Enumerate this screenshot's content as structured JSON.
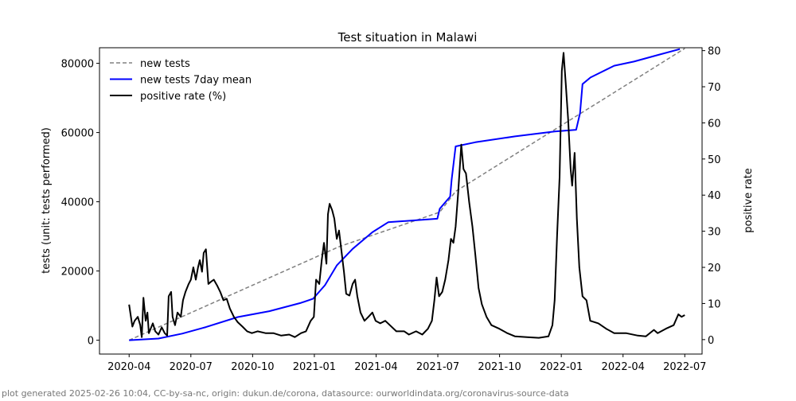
{
  "chart_data": {
    "type": "line",
    "title": "Test situation in Malawi",
    "xlabel": "",
    "ylabel": "tests (unit: tests performed)",
    "ylabel_right": "positive rate",
    "x_unit": "decimal year",
    "xlim": [
      2020.13,
      2022.57
    ],
    "ylim": [
      -4000,
      84500
    ],
    "ylim_right": [
      -4,
      80.8
    ],
    "x_ticks": [
      {
        "v": 2020.25,
        "label": "2020-04"
      },
      {
        "v": 2020.5,
        "label": "2020-07"
      },
      {
        "v": 2020.75,
        "label": "2020-10"
      },
      {
        "v": 2021.0,
        "label": "2021-01"
      },
      {
        "v": 2021.25,
        "label": "2021-04"
      },
      {
        "v": 2021.5,
        "label": "2021-07"
      },
      {
        "v": 2021.75,
        "label": "2021-10"
      },
      {
        "v": 2022.0,
        "label": "2022-01"
      },
      {
        "v": 2022.25,
        "label": "2022-04"
      },
      {
        "v": 2022.5,
        "label": "2022-07"
      }
    ],
    "y_ticks": [
      {
        "v": 0,
        "label": "0"
      },
      {
        "v": 20000,
        "label": "20000"
      },
      {
        "v": 40000,
        "label": "40000"
      },
      {
        "v": 60000,
        "label": "60000"
      },
      {
        "v": 80000,
        "label": "80000"
      }
    ],
    "y_ticks_right": [
      {
        "v": 0,
        "label": "0"
      },
      {
        "v": 10,
        "label": "10"
      },
      {
        "v": 20,
        "label": "20"
      },
      {
        "v": 30,
        "label": "30"
      },
      {
        "v": 40,
        "label": "40"
      },
      {
        "v": 50,
        "label": "50"
      },
      {
        "v": 60,
        "label": "60"
      },
      {
        "v": 70,
        "label": "70"
      },
      {
        "v": 80,
        "label": "80"
      }
    ],
    "legend_position": "top-left",
    "series": [
      {
        "name": "new tests",
        "axis": "left",
        "color": "#808080",
        "style": "dashed",
        "x": [
          2020.25,
          2021.1,
          2021.508,
          2021.572,
          2022.5
        ],
        "y": [
          0,
          27000,
          37000,
          43000,
          84300
        ]
      },
      {
        "name": "new tests 7day mean",
        "axis": "left",
        "color": "#0000ff",
        "style": "solid",
        "x": [
          2020.25,
          2020.369,
          2020.465,
          2020.561,
          2020.69,
          2020.818,
          2020.946,
          2020.995,
          2021.043,
          2021.091,
          2021.155,
          2021.235,
          2021.299,
          2021.498,
          2021.508,
          2021.55,
          2021.556,
          2021.572,
          2021.652,
          2021.813,
          2021.973,
          2022.06,
          2022.076,
          2022.086,
          2022.118,
          2022.214,
          2022.294,
          2022.391,
          2022.48
        ],
        "y": [
          0,
          480,
          1900,
          3800,
          6700,
          8400,
          10800,
          12000,
          15900,
          21600,
          26400,
          31200,
          34100,
          35100,
          38000,
          41500,
          46400,
          56000,
          57200,
          58900,
          60300,
          60800,
          65600,
          74000,
          75900,
          79300,
          80500,
          82400,
          84100
        ]
      },
      {
        "name": "positive rate (%)",
        "axis": "right",
        "color": "#000000",
        "style": "solid",
        "x": [
          2020.25,
          2020.263,
          2020.272,
          2020.285,
          2020.295,
          2020.301,
          2020.308,
          2020.317,
          2020.324,
          2020.33,
          2020.346,
          2020.356,
          2020.369,
          2020.382,
          2020.394,
          2020.404,
          2020.41,
          2020.42,
          2020.426,
          2020.436,
          2020.446,
          2020.459,
          2020.468,
          2020.478,
          2020.491,
          2020.5,
          2020.51,
          2020.52,
          2020.529,
          2020.536,
          2020.545,
          2020.552,
          2020.561,
          2020.571,
          2020.581,
          2020.593,
          2020.606,
          2020.619,
          2020.632,
          2020.645,
          2020.658,
          2020.674,
          2020.69,
          2020.709,
          2020.728,
          2020.747,
          2020.77,
          2020.802,
          2020.834,
          2020.866,
          2020.898,
          2020.921,
          2020.946,
          2020.966,
          2020.985,
          2020.998,
          2021.007,
          2021.02,
          2021.03,
          2021.039,
          2021.049,
          2021.055,
          2021.062,
          2021.072,
          2021.081,
          2021.091,
          2021.1,
          2021.11,
          2021.12,
          2021.129,
          2021.142,
          2021.155,
          2021.165,
          2021.174,
          2021.187,
          2021.203,
          2021.219,
          2021.235,
          2021.248,
          2021.267,
          2021.287,
          2021.306,
          2021.332,
          2021.364,
          2021.383,
          2021.412,
          2021.437,
          2021.46,
          2021.476,
          2021.486,
          2021.495,
          2021.505,
          2021.518,
          2021.53,
          2021.543,
          2021.553,
          2021.563,
          2021.572,
          2021.582,
          2021.595,
          2021.604,
          2021.614,
          2021.627,
          2021.64,
          2021.652,
          2021.665,
          2021.678,
          2021.697,
          2021.717,
          2021.749,
          2021.781,
          2021.813,
          2021.861,
          2021.909,
          2021.948,
          2021.964,
          2021.973,
          2021.983,
          2021.993,
          2022.002,
          2022.009,
          2022.018,
          2022.028,
          2022.038,
          2022.044,
          2022.054,
          2022.063,
          2022.073,
          2022.086,
          2022.102,
          2022.117,
          2022.15,
          2022.182,
          2022.214,
          2022.262,
          2022.31,
          2022.342,
          2022.375,
          2022.39,
          2022.423,
          2022.455,
          2022.474,
          2022.487,
          2022.5
        ],
        "y": [
          9.7,
          3.6,
          5.2,
          6.3,
          4,
          0.7,
          11.6,
          5.2,
          7.5,
          1.8,
          4.5,
          2.3,
          1.4,
          3.4,
          1.8,
          1.1,
          12,
          13.2,
          6.3,
          4,
          7.5,
          6.3,
          10.9,
          13.2,
          15.4,
          16.6,
          20,
          16.6,
          20,
          22,
          18.8,
          24,
          25,
          15.4,
          16,
          16.6,
          15,
          13.2,
          10.9,
          11.3,
          8.6,
          6.3,
          4.8,
          3.6,
          2.3,
          1.8,
          2.3,
          1.8,
          1.8,
          1.1,
          1.4,
          0.7,
          1.8,
          2.3,
          5.2,
          6.3,
          16.6,
          15.4,
          22,
          26.8,
          21,
          34.7,
          37.6,
          35.8,
          33.5,
          27.9,
          30.2,
          24.5,
          18.8,
          12.7,
          12.2,
          15.4,
          16.6,
          12,
          7.5,
          5.2,
          6.3,
          7.5,
          5.2,
          4.5,
          5.2,
          4,
          2.3,
          2.3,
          1.4,
          2.3,
          1.4,
          3,
          5.2,
          10.9,
          17.2,
          12,
          13.2,
          16.6,
          22,
          27.9,
          26.8,
          31.3,
          40.4,
          54,
          47.2,
          46,
          38.1,
          31.3,
          23.4,
          14.3,
          9.8,
          6.3,
          4,
          3,
          1.8,
          0.9,
          0.7,
          0.5,
          0.9,
          4,
          10.9,
          29,
          44.9,
          74.4,
          79.4,
          71,
          60.8,
          47.2,
          42.6,
          51.7,
          33.5,
          20,
          12,
          10.9,
          5.2,
          4.5,
          3,
          1.8,
          1.8,
          1.1,
          0.9,
          2.7,
          1.8,
          3,
          4,
          7,
          6.3,
          6.8
        ]
      }
    ]
  },
  "footer": "plot generated 2025-02-26 10:04, CC-by-sa-nc, origin: dukun.de/corona, datasource: ourworldindata.org/coronavirus-source-data"
}
